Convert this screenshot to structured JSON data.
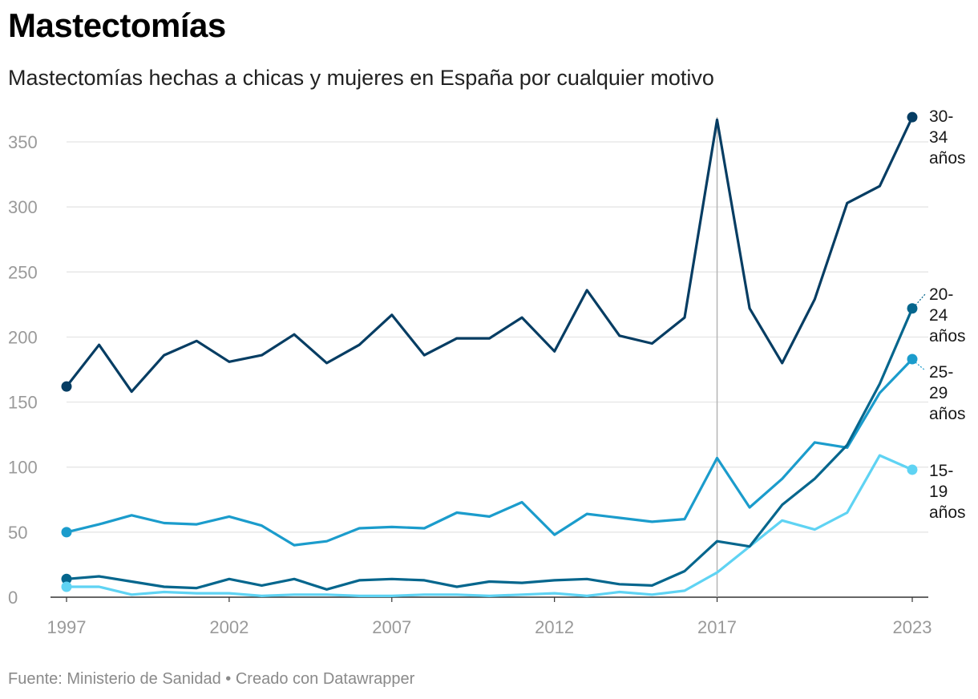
{
  "header": {
    "title": "Mastectomías",
    "subtitle": "Mastectomías hechas a chicas y mujeres en España por cualquier motivo"
  },
  "footer": {
    "source_prefix": "Fuente: Ministerio de Sanidad",
    "separator": "•",
    "credit": "Creado con Datawrapper"
  },
  "chart_data": {
    "type": "line",
    "title": "Mastectomías",
    "subtitle": "Mastectomías hechas a chicas y mujeres en España por cualquier motivo",
    "xlabel": "",
    "ylabel": "",
    "x": [
      1997,
      1998,
      1999,
      2000,
      2001,
      2002,
      2003,
      2004,
      2005,
      2006,
      2007,
      2008,
      2009,
      2010,
      2011,
      2012,
      2013,
      2014,
      2015,
      2016,
      2017,
      2018,
      2019,
      2020,
      2021,
      2022,
      2023
    ],
    "xlim": [
      1997,
      2023
    ],
    "ylim": [
      0,
      370
    ],
    "x_ticks": [
      "1997",
      "2002",
      "2007",
      "2012",
      "2017",
      "2023"
    ],
    "y_ticks": [
      "0",
      "50",
      "100",
      "150",
      "200",
      "250",
      "300",
      "350"
    ],
    "highlight_year": 2017,
    "grid": true,
    "series": [
      {
        "name": "30-34 años",
        "label_lines": [
          "30-",
          "34",
          "años"
        ],
        "color": "#063d63",
        "values": [
          162,
          194,
          158,
          186,
          197,
          181,
          186,
          202,
          180,
          194,
          217,
          186,
          199,
          199,
          215,
          189,
          236,
          201,
          195,
          215,
          367,
          222,
          180,
          229,
          303,
          316,
          369
        ]
      },
      {
        "name": "20-24 años",
        "label_lines": [
          "20-",
          "24",
          "años"
        ],
        "color": "#05668d",
        "values": [
          14,
          16,
          12,
          8,
          7,
          14,
          9,
          14,
          6,
          13,
          14,
          13,
          8,
          12,
          11,
          13,
          14,
          10,
          9,
          20,
          43,
          39,
          71,
          91,
          117,
          164,
          222
        ]
      },
      {
        "name": "25-29 años",
        "label_lines": [
          "25-",
          "29",
          "años"
        ],
        "color": "#1b9ccc",
        "values": [
          50,
          56,
          63,
          57,
          56,
          62,
          55,
          40,
          43,
          53,
          54,
          53,
          65,
          62,
          73,
          48,
          64,
          61,
          58,
          60,
          107,
          69,
          91,
          119,
          115,
          157,
          183
        ]
      },
      {
        "name": "15-19 años",
        "label_lines": [
          "15-",
          "19",
          "años"
        ],
        "color": "#5fd3f3",
        "values": [
          8,
          8,
          2,
          4,
          3,
          3,
          1,
          2,
          2,
          1,
          1,
          2,
          2,
          1,
          2,
          3,
          1,
          4,
          2,
          5,
          19,
          39,
          59,
          52,
          65,
          109,
          98
        ]
      }
    ]
  }
}
